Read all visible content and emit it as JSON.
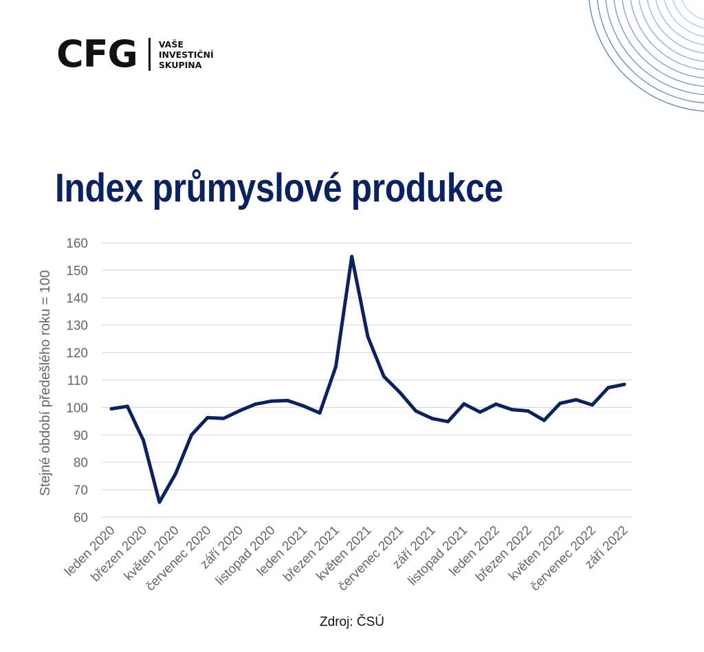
{
  "brand": {
    "logo_text": "CFG",
    "tagline": [
      "VAŠE",
      "INVESTIČNÍ",
      "SKUPINA"
    ]
  },
  "title": "Index průmyslové produkce",
  "source": "Zdroj: ČSÚ",
  "colors": {
    "title": "#0b2260",
    "line": "#0b2260",
    "grid": "#d9d9d9",
    "axis_text": "#666666",
    "decoration": "#3f73c4"
  },
  "chart_data": {
    "type": "line",
    "ylabel": "Stejné období předešlého roku = 100",
    "xlabel": "",
    "ylim": [
      60,
      160
    ],
    "yticks": [
      60,
      70,
      80,
      90,
      100,
      110,
      120,
      130,
      140,
      150,
      160
    ],
    "grid": true,
    "x": [
      "leden 2020",
      "únor 2020",
      "březen 2020",
      "duben 2020",
      "květen 2020",
      "červen 2020",
      "červenec 2020",
      "srpen 2020",
      "září 2020",
      "říjen 2020",
      "listopad 2020",
      "prosinec 2020",
      "leden 2021",
      "únor 2021",
      "březen 2021",
      "duben 2021",
      "květen 2021",
      "červen 2021",
      "červenec 2021",
      "srpen 2021",
      "září 2021",
      "říjen 2021",
      "listopad 2021",
      "prosinec 2021",
      "leden 2022",
      "únor 2022",
      "březen 2022",
      "duben 2022",
      "květen 2022",
      "červen 2022",
      "červenec 2022",
      "srpen 2022",
      "září 2022"
    ],
    "tick_labels": [
      "leden 2020",
      "březen 2020",
      "květen 2020",
      "červenec 2020",
      "září 2020",
      "listopad 2020",
      "leden 2021",
      "březen 2021",
      "květen 2021",
      "červenec 2021",
      "září 2021",
      "listopad 2021",
      "leden 2022",
      "březen 2022",
      "květen 2022",
      "červenec 2022",
      "září 2022"
    ],
    "series": [
      {
        "values": [
          99.5,
          100.4,
          88.0,
          65.5,
          75.8,
          90.0,
          96.3,
          96.0,
          98.8,
          101.2,
          102.3,
          102.5,
          100.5,
          98.0,
          114.8,
          155.0,
          125.8,
          111.3,
          105.5,
          98.7,
          96.0,
          94.8,
          101.3,
          98.3,
          101.2,
          99.2,
          98.7,
          95.3,
          101.5,
          102.8,
          100.9,
          107.2,
          108.4
        ]
      }
    ]
  }
}
